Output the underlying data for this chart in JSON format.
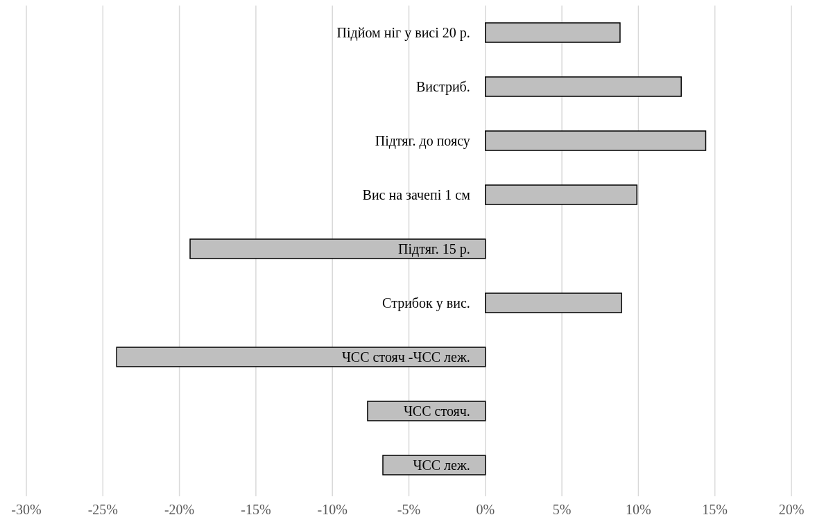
{
  "chart_data": {
    "type": "bar",
    "orientation": "horizontal",
    "categories": [
      "Підйом ніг у висі 20 р.",
      "Вистриб.",
      "Підтяг. до поясу",
      "Вис на зачепі 1 см",
      "Підтяг. 15 р.",
      "Стрибок у вис.",
      "ЧСС стояч -ЧСС леж.",
      "ЧСС стояч.",
      "ЧСС леж."
    ],
    "values": [
      8.8,
      12.8,
      14.4,
      9.9,
      -19.3,
      8.9,
      -24.1,
      -7.7,
      -6.7
    ],
    "color": "#bfbfbf",
    "xlim": [
      -30,
      20
    ],
    "xticks": [
      {
        "value": -30,
        "label": "-30%"
      },
      {
        "value": -25,
        "label": "-25%"
      },
      {
        "value": -20,
        "label": "-20%"
      },
      {
        "value": -15,
        "label": "-15%"
      },
      {
        "value": -10,
        "label": "-10%"
      },
      {
        "value": -5,
        "label": "-5%"
      },
      {
        "value": 0,
        "label": "0%"
      },
      {
        "value": 5,
        "label": "5%"
      },
      {
        "value": 10,
        "label": "10%"
      },
      {
        "value": 15,
        "label": "15%"
      },
      {
        "value": 20,
        "label": "20%"
      }
    ],
    "grid": "x"
  }
}
